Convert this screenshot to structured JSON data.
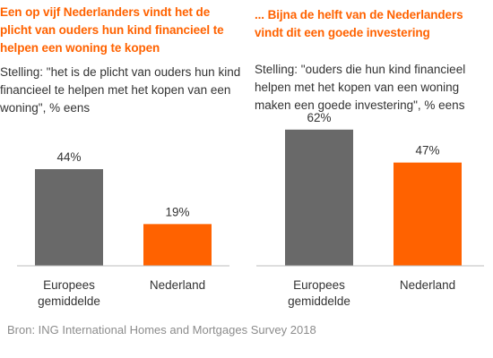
{
  "charts": [
    {
      "title": "Een op vijf Nederlanders vindt het de plicht van ouders hun kind financieel te helpen een woning te kopen",
      "subtitle": "Stelling: \"het is de plicht van ouders hun kind financieel te helpen met het kopen van een woning\", % eens"
    },
    {
      "title": "... Bijna de helft van de Nederlanders vindt dit een goede investering",
      "subtitle": "Stelling: \"ouders die hun kind financieel helpen met het kopen van een woning maken een goede investering\", % eens"
    }
  ],
  "chart_data": [
    {
      "type": "bar",
      "categories": [
        "Europees gemiddelde",
        "Nederland"
      ],
      "category_lines": [
        [
          "Europees",
          "gemiddelde"
        ],
        [
          "Nederland"
        ]
      ],
      "values": [
        44,
        19
      ],
      "value_labels": [
        "44%",
        "19%"
      ],
      "colors": [
        "#696969",
        "#ff6200"
      ],
      "ylim": [
        0,
        60
      ],
      "grid": false
    },
    {
      "type": "bar",
      "categories": [
        "Europees gemiddelde",
        "Nederland"
      ],
      "category_lines": [
        [
          "Europees",
          "gemiddelde"
        ],
        [
          "Nederland"
        ]
      ],
      "values": [
        62,
        47
      ],
      "value_labels": [
        "62%",
        "47%"
      ],
      "colors": [
        "#696969",
        "#ff6200"
      ],
      "ylim": [
        0,
        62
      ],
      "grid": false
    }
  ],
  "source": "Bron: ING International Homes and Mortgages Survey 2018"
}
